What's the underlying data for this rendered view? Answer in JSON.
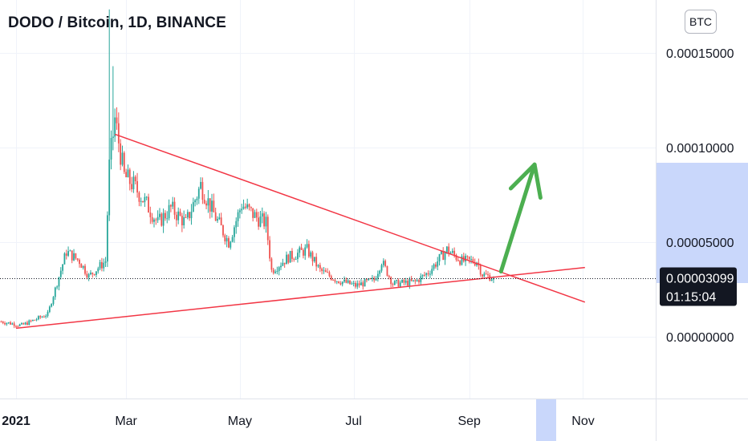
{
  "header": {
    "title": "DODO / Bitcoin, 1D, BINANCE",
    "currency_button": "BTC"
  },
  "colors": {
    "up": "#26a69a",
    "down": "#ef5350",
    "trendline": "#f23645",
    "arrow": "#4caf50",
    "price_label_bg": "#131722",
    "highlight": "#c9d7fb"
  },
  "chart_data": {
    "type": "candlestick",
    "symbol": "DODO / Bitcoin",
    "interval": "1D",
    "exchange": "BINANCE",
    "y_axis": {
      "ticks": [
        {
          "value": 0.00015,
          "label": "0.00015000"
        },
        {
          "value": 0.0001,
          "label": "0.00010000"
        },
        {
          "value": 5e-05,
          "label": "0.00005000"
        },
        {
          "value": 0.0,
          "label": "0.00000000"
        }
      ],
      "range": [
        -3.4e-05,
        0.000175
      ]
    },
    "x_axis": {
      "ticks": [
        {
          "date": "2021-01-01",
          "label": "2021",
          "bold": true
        },
        {
          "date": "2021-03-01",
          "label": "Mar"
        },
        {
          "date": "2021-05-01",
          "label": "May"
        },
        {
          "date": "2021-07-01",
          "label": "Jul"
        },
        {
          "date": "2021-09-01",
          "label": "Sep"
        },
        {
          "date": "2021-11-01",
          "label": "Nov"
        }
      ]
    },
    "current_price": {
      "value": 3.099e-05,
      "label": "0.00003099",
      "countdown": "01:15:04"
    },
    "trendlines": [
      {
        "name": "descending",
        "from": {
          "date": "2021-02-23",
          "value": 0.000107
        },
        "to": {
          "date": "2021-11-02",
          "value": 1.83e-05
        }
      },
      {
        "name": "ascending",
        "from": {
          "date": "2021-01-01",
          "value": 4.5e-06
        },
        "to": {
          "date": "2021-11-02",
          "value": 3.66e-05
        }
      }
    ],
    "arrow": {
      "from": {
        "date": "2021-09-18",
        "value": 3.45e-05
      },
      "to": {
        "date": "2021-10-06",
        "value": 9.1e-05
      }
    },
    "key_points": [
      {
        "date": "2020-12-24",
        "value": 8e-06
      },
      {
        "date": "2021-01-04",
        "value": 6e-06
      },
      {
        "date": "2021-01-18",
        "value": 1.2e-05
      },
      {
        "date": "2021-01-28",
        "value": 4.5e-05
      },
      {
        "date": "2021-02-04",
        "value": 4e-05
      },
      {
        "date": "2021-02-09",
        "value": 3.2e-05
      },
      {
        "date": "2021-02-18",
        "value": 4e-05
      },
      {
        "date": "2021-02-20",
        "value": 9e-05
      },
      {
        "date": "2021-02-23",
        "value": 0.000115
      },
      {
        "date": "2021-02-28",
        "value": 8.5e-05
      },
      {
        "date": "2021-03-05",
        "value": 8e-05
      },
      {
        "date": "2021-03-12",
        "value": 7e-05
      },
      {
        "date": "2021-03-18",
        "value": 6e-05
      },
      {
        "date": "2021-03-25",
        "value": 6.8e-05
      },
      {
        "date": "2021-04-02",
        "value": 6e-05
      },
      {
        "date": "2021-04-10",
        "value": 8e-05
      },
      {
        "date": "2021-04-18",
        "value": 6.3e-05
      },
      {
        "date": "2021-04-25",
        "value": 5e-05
      },
      {
        "date": "2021-05-02",
        "value": 7e-05
      },
      {
        "date": "2021-05-10",
        "value": 6.3e-05
      },
      {
        "date": "2021-05-15",
        "value": 6e-05
      },
      {
        "date": "2021-05-18",
        "value": 3.5e-05
      },
      {
        "date": "2021-05-27",
        "value": 4.2e-05
      },
      {
        "date": "2021-06-06",
        "value": 4.6e-05
      },
      {
        "date": "2021-06-13",
        "value": 3.5e-05
      },
      {
        "date": "2021-06-22",
        "value": 3e-05
      },
      {
        "date": "2021-07-02",
        "value": 2.7e-05
      },
      {
        "date": "2021-07-12",
        "value": 3e-05
      },
      {
        "date": "2021-07-16",
        "value": 4e-05
      },
      {
        "date": "2021-07-22",
        "value": 2.8e-05
      },
      {
        "date": "2021-08-03",
        "value": 2.9e-05
      },
      {
        "date": "2021-08-10",
        "value": 3.4e-05
      },
      {
        "date": "2021-08-20",
        "value": 4.6e-05
      },
      {
        "date": "2021-08-28",
        "value": 4e-05
      },
      {
        "date": "2021-09-05",
        "value": 4e-05
      },
      {
        "date": "2021-09-08",
        "value": 3.3e-05
      },
      {
        "date": "2021-09-14",
        "value": 3.1e-05
      }
    ]
  }
}
